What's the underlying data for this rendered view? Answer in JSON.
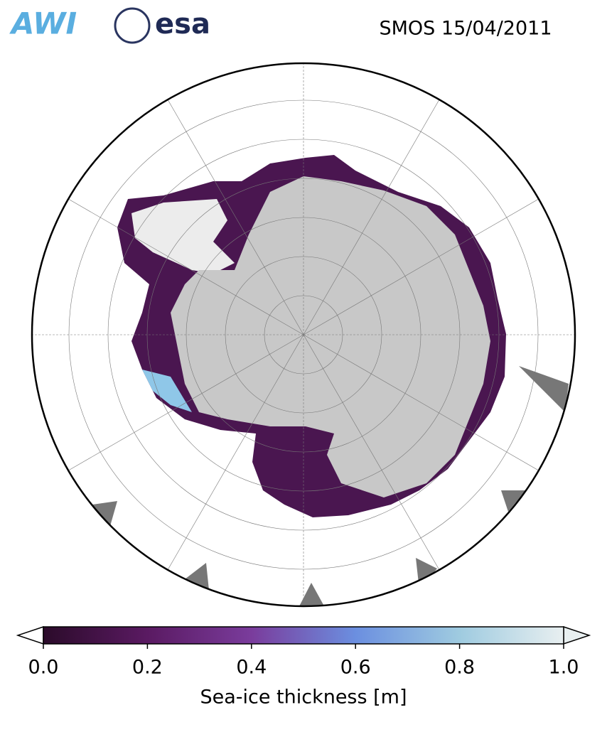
{
  "header": {
    "logos": [
      "AWI",
      "esa"
    ],
    "title": "SMOS 15/04/2011"
  },
  "colorbar": {
    "label": "Sea-ice thickness [m]",
    "lim": [
      0,
      1
    ],
    "ticks": [
      {
        "value": 0,
        "label": "0.0"
      },
      {
        "value": 0.2,
        "label": "0.2"
      },
      {
        "value": 0.4,
        "label": "0.4"
      },
      {
        "value": 0.6,
        "label": "0.6"
      },
      {
        "value": 0.8,
        "label": "0.8"
      },
      {
        "value": 1,
        "label": "1.0"
      }
    ],
    "colors": [
      "#2b0b2a",
      "#5a1a62",
      "#7a3c9c",
      "#6b8fe0",
      "#9fcbe0",
      "#e8eff0"
    ],
    "under_color": "#ffffff",
    "over_color": "#e8eff0"
  }
}
